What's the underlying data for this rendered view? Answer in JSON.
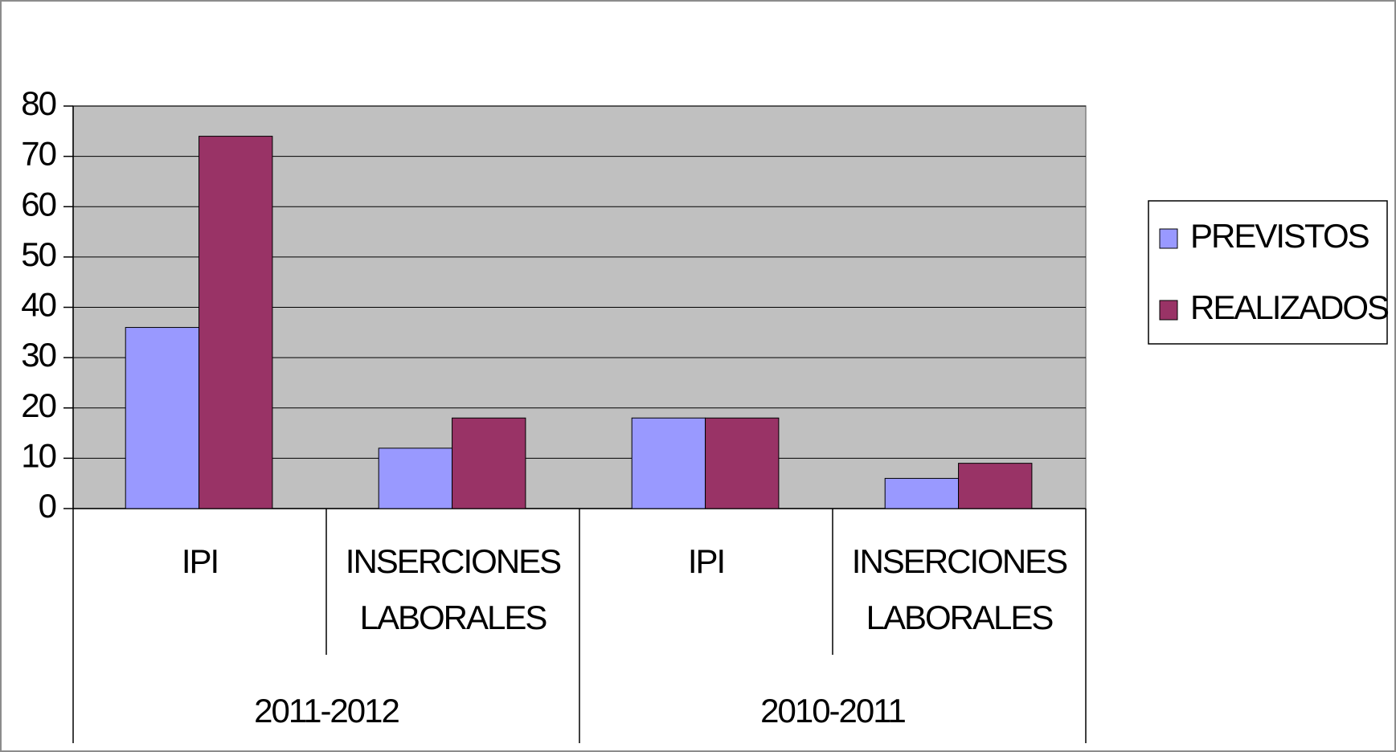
{
  "chart_data": {
    "type": "bar",
    "groups": [
      {
        "name": "2011-2012",
        "categories": [
          "IPI",
          "INSERCIONES LABORALES"
        ]
      },
      {
        "name": "2010-2011",
        "categories": [
          "IPI",
          "INSERCIONES LABORALES"
        ]
      }
    ],
    "series": [
      {
        "name": "PREVISTOS",
        "color": "#9999ff",
        "values": [
          36,
          12,
          18,
          6
        ]
      },
      {
        "name": "REALIZADOS",
        "color": "#993366",
        "values": [
          74,
          18,
          18,
          9
        ]
      }
    ],
    "ylim": [
      0,
      80
    ],
    "yticks": [
      0,
      10,
      20,
      30,
      40,
      50,
      60,
      70,
      80
    ],
    "grid": true,
    "legend": "right"
  }
}
